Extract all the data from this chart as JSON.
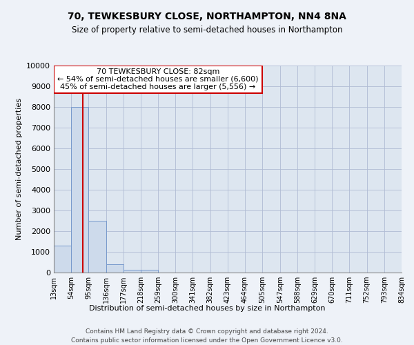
{
  "title1": "70, TEWKESBURY CLOSE, NORTHAMPTON, NN4 8NA",
  "title2": "Size of property relative to semi-detached houses in Northampton",
  "xlabel": "Distribution of semi-detached houses by size in Northampton",
  "ylabel": "Number of semi-detached properties",
  "footer1": "Contains HM Land Registry data © Crown copyright and database right 2024.",
  "footer2": "Contains public sector information licensed under the Open Government Licence v3.0.",
  "annotation_title": "70 TEWKESBURY CLOSE: 82sqm",
  "annotation_line1": "← 54% of semi-detached houses are smaller (6,600)",
  "annotation_line2": "45% of semi-detached houses are larger (5,556) →",
  "property_size": 82,
  "bin_edges": [
    13,
    54,
    95,
    136,
    177,
    218,
    259,
    300,
    341,
    382,
    423,
    464,
    505,
    547,
    588,
    629,
    670,
    711,
    752,
    793,
    834
  ],
  "bar_heights": [
    1300,
    8000,
    2500,
    400,
    150,
    150,
    0,
    0,
    0,
    0,
    0,
    0,
    0,
    0,
    0,
    0,
    0,
    0,
    0,
    0
  ],
  "bar_color": "#cddaeb",
  "bar_edge_color": "#7799cc",
  "grid_color": "#b0bcd4",
  "bg_color": "#dde6f0",
  "fig_bg_color": "#eef2f8",
  "property_line_color": "#cc0000",
  "annotation_box_color": "#cc0000",
  "ylim": [
    0,
    10000
  ],
  "yticks": [
    0,
    1000,
    2000,
    3000,
    4000,
    5000,
    6000,
    7000,
    8000,
    9000,
    10000
  ]
}
